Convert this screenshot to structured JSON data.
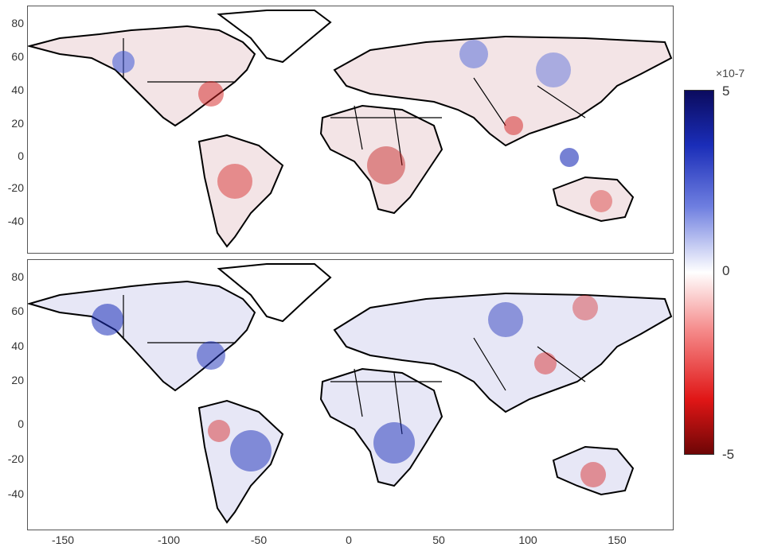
{
  "panels": [
    {
      "name": "top-map"
    },
    {
      "name": "bottom-map"
    }
  ],
  "y_ticks_top": [
    "80",
    "60",
    "40",
    "20",
    "0",
    "-20",
    "-40"
  ],
  "y_ticks_bottom": [
    "80",
    "60",
    "40",
    "20",
    "0",
    "-20",
    "-40"
  ],
  "x_ticks": [
    "-150",
    "-100",
    "-50",
    "0",
    "50",
    "100",
    "150"
  ],
  "colorbar": {
    "exponent_label": "×10-7",
    "max_label": "5",
    "mid_label": "0",
    "min_label": "-5",
    "colors": {
      "high": "#0b0b5e",
      "mid": "#ffffff",
      "low": "#6e0606"
    }
  }
}
